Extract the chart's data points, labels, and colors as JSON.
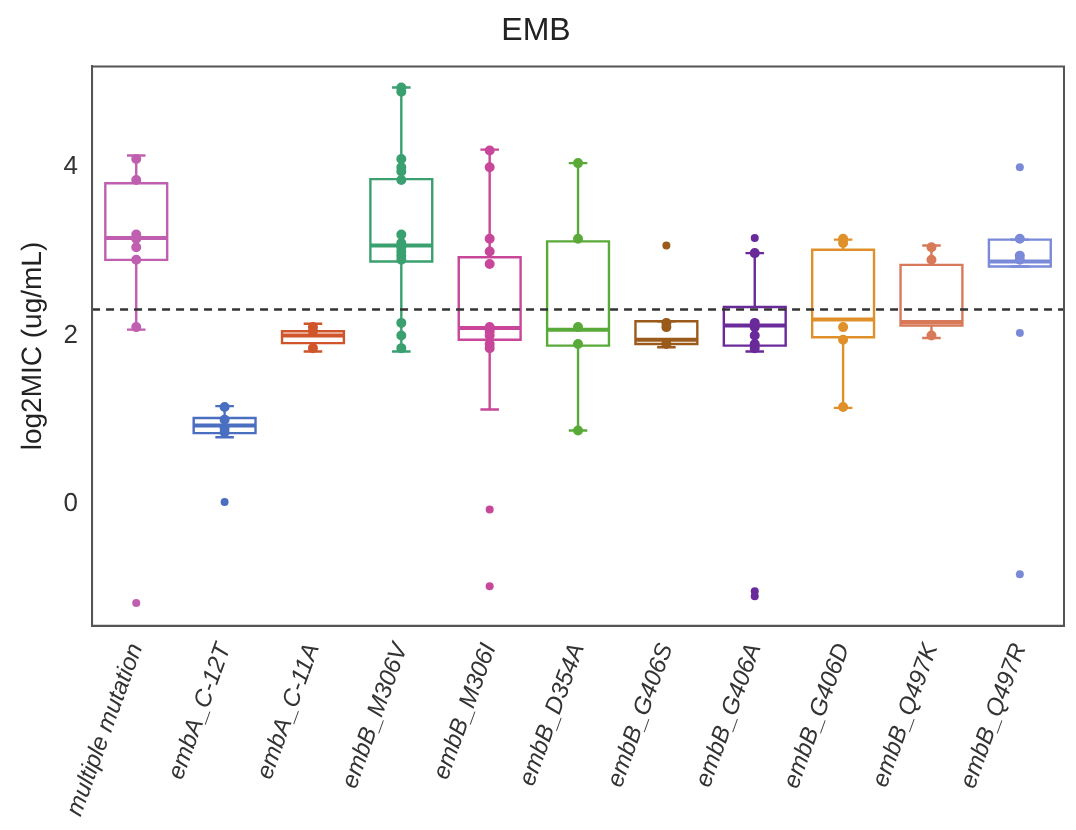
{
  "chart_data": {
    "type": "box",
    "title": "EMB",
    "ylabel": "log2MIC (ug/mL)",
    "categories": [
      "multiple mutation",
      "embA_C-12T",
      "embA_C-11A",
      "embB_M306V",
      "embB_M306I",
      "embB_D354A",
      "embB_G406S",
      "embB_G406A",
      "embB_G406D",
      "embB_Q497K",
      "embB_Q497R"
    ],
    "colors": [
      "#c05fb0",
      "#4a6fc0",
      "#d0552a",
      "#3aa070",
      "#c8479a",
      "#5aaa3a",
      "#9a5a1a",
      "#6a2a9a",
      "#e0902a",
      "#d87a5a",
      "#7a8ad8"
    ],
    "boxes": [
      {
        "low": 2.07,
        "q1": 2.9,
        "median": 3.16,
        "q3": 3.81,
        "high": 4.14,
        "outliers": [
          -1.18
        ]
      },
      {
        "low": 0.79,
        "q1": 0.84,
        "median": 0.93,
        "q3": 1.02,
        "high": 1.16,
        "outliers": [
          0.02
        ]
      },
      {
        "low": 1.81,
        "q1": 1.91,
        "median": 2.0,
        "q3": 2.05,
        "high": 2.14
      },
      {
        "low": 1.81,
        "q1": 2.88,
        "median": 3.07,
        "q3": 3.86,
        "high": 4.95
      },
      {
        "low": 1.12,
        "q1": 1.95,
        "median": 2.09,
        "q3": 2.93,
        "high": 4.21,
        "outliers": [
          -0.07,
          -0.98
        ]
      },
      {
        "low": 0.87,
        "q1": 1.88,
        "median": 2.07,
        "q3": 3.12,
        "high": 4.05
      },
      {
        "low": 1.86,
        "q1": 1.9,
        "median": 1.95,
        "q3": 2.17,
        "high": 2.17,
        "outliers": [
          3.07
        ]
      },
      {
        "low": 1.81,
        "q1": 1.88,
        "median": 2.12,
        "q3": 2.34,
        "high": 2.98,
        "outliers": [
          3.16,
          -1.04,
          -1.1
        ]
      },
      {
        "low": 1.14,
        "q1": 1.98,
        "median": 2.19,
        "q3": 3.02,
        "high": 3.14
      },
      {
        "low": 1.97,
        "q1": 2.12,
        "median": 2.16,
        "q3": 2.84,
        "high": 3.07
      },
      {
        "low": 2.82,
        "q1": 2.82,
        "median": 2.88,
        "q3": 3.14,
        "high": 3.14,
        "outliers": [
          4.0,
          2.03,
          -0.84
        ]
      }
    ],
    "series": [
      {
        "type": "scatter",
        "x": [
          "multiple mutation",
          "multiple mutation",
          "multiple mutation",
          "multiple mutation",
          "multiple mutation",
          "multiple mutation",
          "multiple mutation",
          "embA_C-12T",
          "embA_C-12T",
          "embA_C-12T",
          "embA_C-12T",
          "embA_C-11A",
          "embA_C-11A",
          "embA_C-11A",
          "embB_M306V",
          "embB_M306V",
          "embB_M306V",
          "embB_M306V",
          "embB_M306V",
          "embB_M306V",
          "embB_M306V",
          "embB_M306V",
          "embB_M306V",
          "embB_M306V",
          "embB_M306V",
          "embB_M306V",
          "embB_M306V",
          "embB_M306V",
          "embB_M306V",
          "embB_M306I",
          "embB_M306I",
          "embB_M306I",
          "embB_M306I",
          "embB_M306I",
          "embB_M306I",
          "embB_M306I",
          "embB_M306I",
          "embB_M306I",
          "embB_M306I",
          "embB_D354A",
          "embB_D354A",
          "embB_D354A",
          "embB_D354A",
          "embB_D354A",
          "embB_G406S",
          "embB_G406S",
          "embB_G406S",
          "embB_G406A",
          "embB_G406A",
          "embB_G406A",
          "embB_G406A",
          "embB_G406A",
          "embB_G406A",
          "embB_G406D",
          "embB_G406D",
          "embB_G406D",
          "embB_G406D",
          "embB_G406D",
          "embB_Q497K",
          "embB_Q497K",
          "embB_Q497K",
          "embB_Q497R",
          "embB_Q497R",
          "embB_Q497R"
        ],
        "values": [
          4.1,
          3.85,
          3.2,
          3.15,
          3.05,
          2.9,
          2.1,
          1.15,
          1.0,
          0.9,
          0.85,
          2.1,
          2.05,
          1.85,
          4.95,
          4.9,
          4.1,
          4.0,
          3.95,
          3.85,
          3.2,
          3.1,
          3.05,
          3.0,
          2.95,
          2.9,
          2.15,
          2.0,
          1.85,
          4.2,
          4.0,
          3.15,
          3.0,
          2.85,
          2.1,
          2.05,
          2.0,
          1.9,
          1.85,
          4.05,
          3.15,
          2.1,
          1.9,
          0.87,
          2.15,
          2.1,
          1.9,
          2.98,
          2.15,
          2.1,
          2.0,
          1.9,
          1.85,
          3.15,
          3.1,
          2.1,
          1.95,
          1.15,
          3.05,
          2.9,
          2.0,
          3.15,
          2.95,
          2.9
        ],
        "colors": [
          "#c05fb0",
          "#c05fb0",
          "#c05fb0",
          "#c05fb0",
          "#c05fb0",
          "#c05fb0",
          "#c05fb0",
          "#4a6fc0",
          "#4a6fc0",
          "#4a6fc0",
          "#4a6fc0",
          "#d0552a",
          "#d0552a",
          "#d0552a",
          "#3aa070",
          "#3aa070",
          "#3aa070",
          "#3aa070",
          "#3aa070",
          "#3aa070",
          "#3aa070",
          "#3aa070",
          "#3aa070",
          "#3aa070",
          "#3aa070",
          "#3aa070",
          "#3aa070",
          "#3aa070",
          "#3aa070",
          "#c8479a",
          "#c8479a",
          "#c8479a",
          "#c8479a",
          "#c8479a",
          "#c8479a",
          "#c8479a",
          "#c8479a",
          "#c8479a",
          "#c8479a",
          "#5aaa3a",
          "#5aaa3a",
          "#5aaa3a",
          "#5aaa3a",
          "#5aaa3a",
          "#9a5a1a",
          "#9a5a1a",
          "#9a5a1a",
          "#6a2a9a",
          "#6a2a9a",
          "#6a2a9a",
          "#6a2a9a",
          "#6a2a9a",
          "#6a2a9a",
          "#e0902a",
          "#e0902a",
          "#e0902a",
          "#e0902a",
          "#e0902a",
          "#d87a5a",
          "#d87a5a",
          "#d87a5a",
          "#7a8ad8",
          "#7a8ad8",
          "#7a8ad8"
        ]
      }
    ],
    "ylim": [
      -1.45,
      5.2
    ],
    "yticks": [
      0,
      2,
      4
    ],
    "ref_lines": [
      {
        "axis": "y",
        "value": 2.31,
        "color": "#333333",
        "line_style": "dashed"
      }
    ],
    "grid": false,
    "legend": false,
    "marker": "circle"
  }
}
